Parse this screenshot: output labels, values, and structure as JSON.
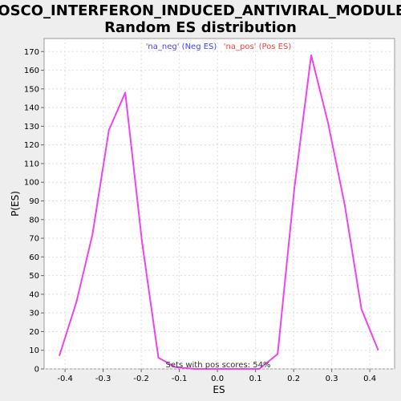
{
  "chart_data": {
    "type": "line",
    "title_line1": "BOSCO_INTERFERON_INDUCED_ANTIVIRAL_MODULE:",
    "title_line2": "Random ES distribution",
    "xlabel": "ES",
    "ylabel": "P(ES)",
    "xlim": [
      -0.455,
      0.465
    ],
    "ylim": [
      0,
      177
    ],
    "x_ticks": [
      -0.4,
      -0.3,
      -0.2,
      -0.1,
      0.0,
      0.1,
      0.2,
      0.3,
      0.4
    ],
    "x_tick_labels": [
      "-0.4",
      "-0.3",
      "-0.2",
      "-0.1",
      "0.0",
      "0.1",
      "0.2",
      "0.3",
      "0.4"
    ],
    "y_ticks": [
      0,
      10,
      20,
      30,
      40,
      50,
      60,
      70,
      80,
      90,
      100,
      110,
      120,
      130,
      140,
      150,
      160,
      170
    ],
    "y_tick_labels": [
      "0",
      "10",
      "20",
      "30",
      "40",
      "50",
      "60",
      "70",
      "80",
      "90",
      "100",
      "110",
      "120",
      "130",
      "140",
      "150",
      "160",
      "170"
    ],
    "grid": true,
    "legend_position": "top-center",
    "series": [
      {
        "name": "'na_neg' (Neg ES)",
        "color": "#ee44ee",
        "legend_color": "#4444ee",
        "x": [
          -0.415,
          -0.37,
          -0.328,
          -0.285,
          -0.242,
          -0.198,
          -0.155,
          -0.11,
          -0.06,
          0.0,
          0.06,
          0.11,
          0.158,
          0.202,
          0.246,
          0.29,
          0.334,
          0.378,
          0.422
        ],
        "y": [
          7,
          36,
          72,
          128,
          148,
          68,
          6,
          1,
          0,
          0,
          0,
          0,
          8,
          97,
          168,
          132,
          88,
          32,
          10
        ]
      },
      {
        "name": "'na_pos' (Pos ES)",
        "color": "#ee44ee",
        "legend_color": "#ee4444",
        "x": [],
        "y": []
      }
    ],
    "annotation": "Sets with pos scores: 54%"
  }
}
